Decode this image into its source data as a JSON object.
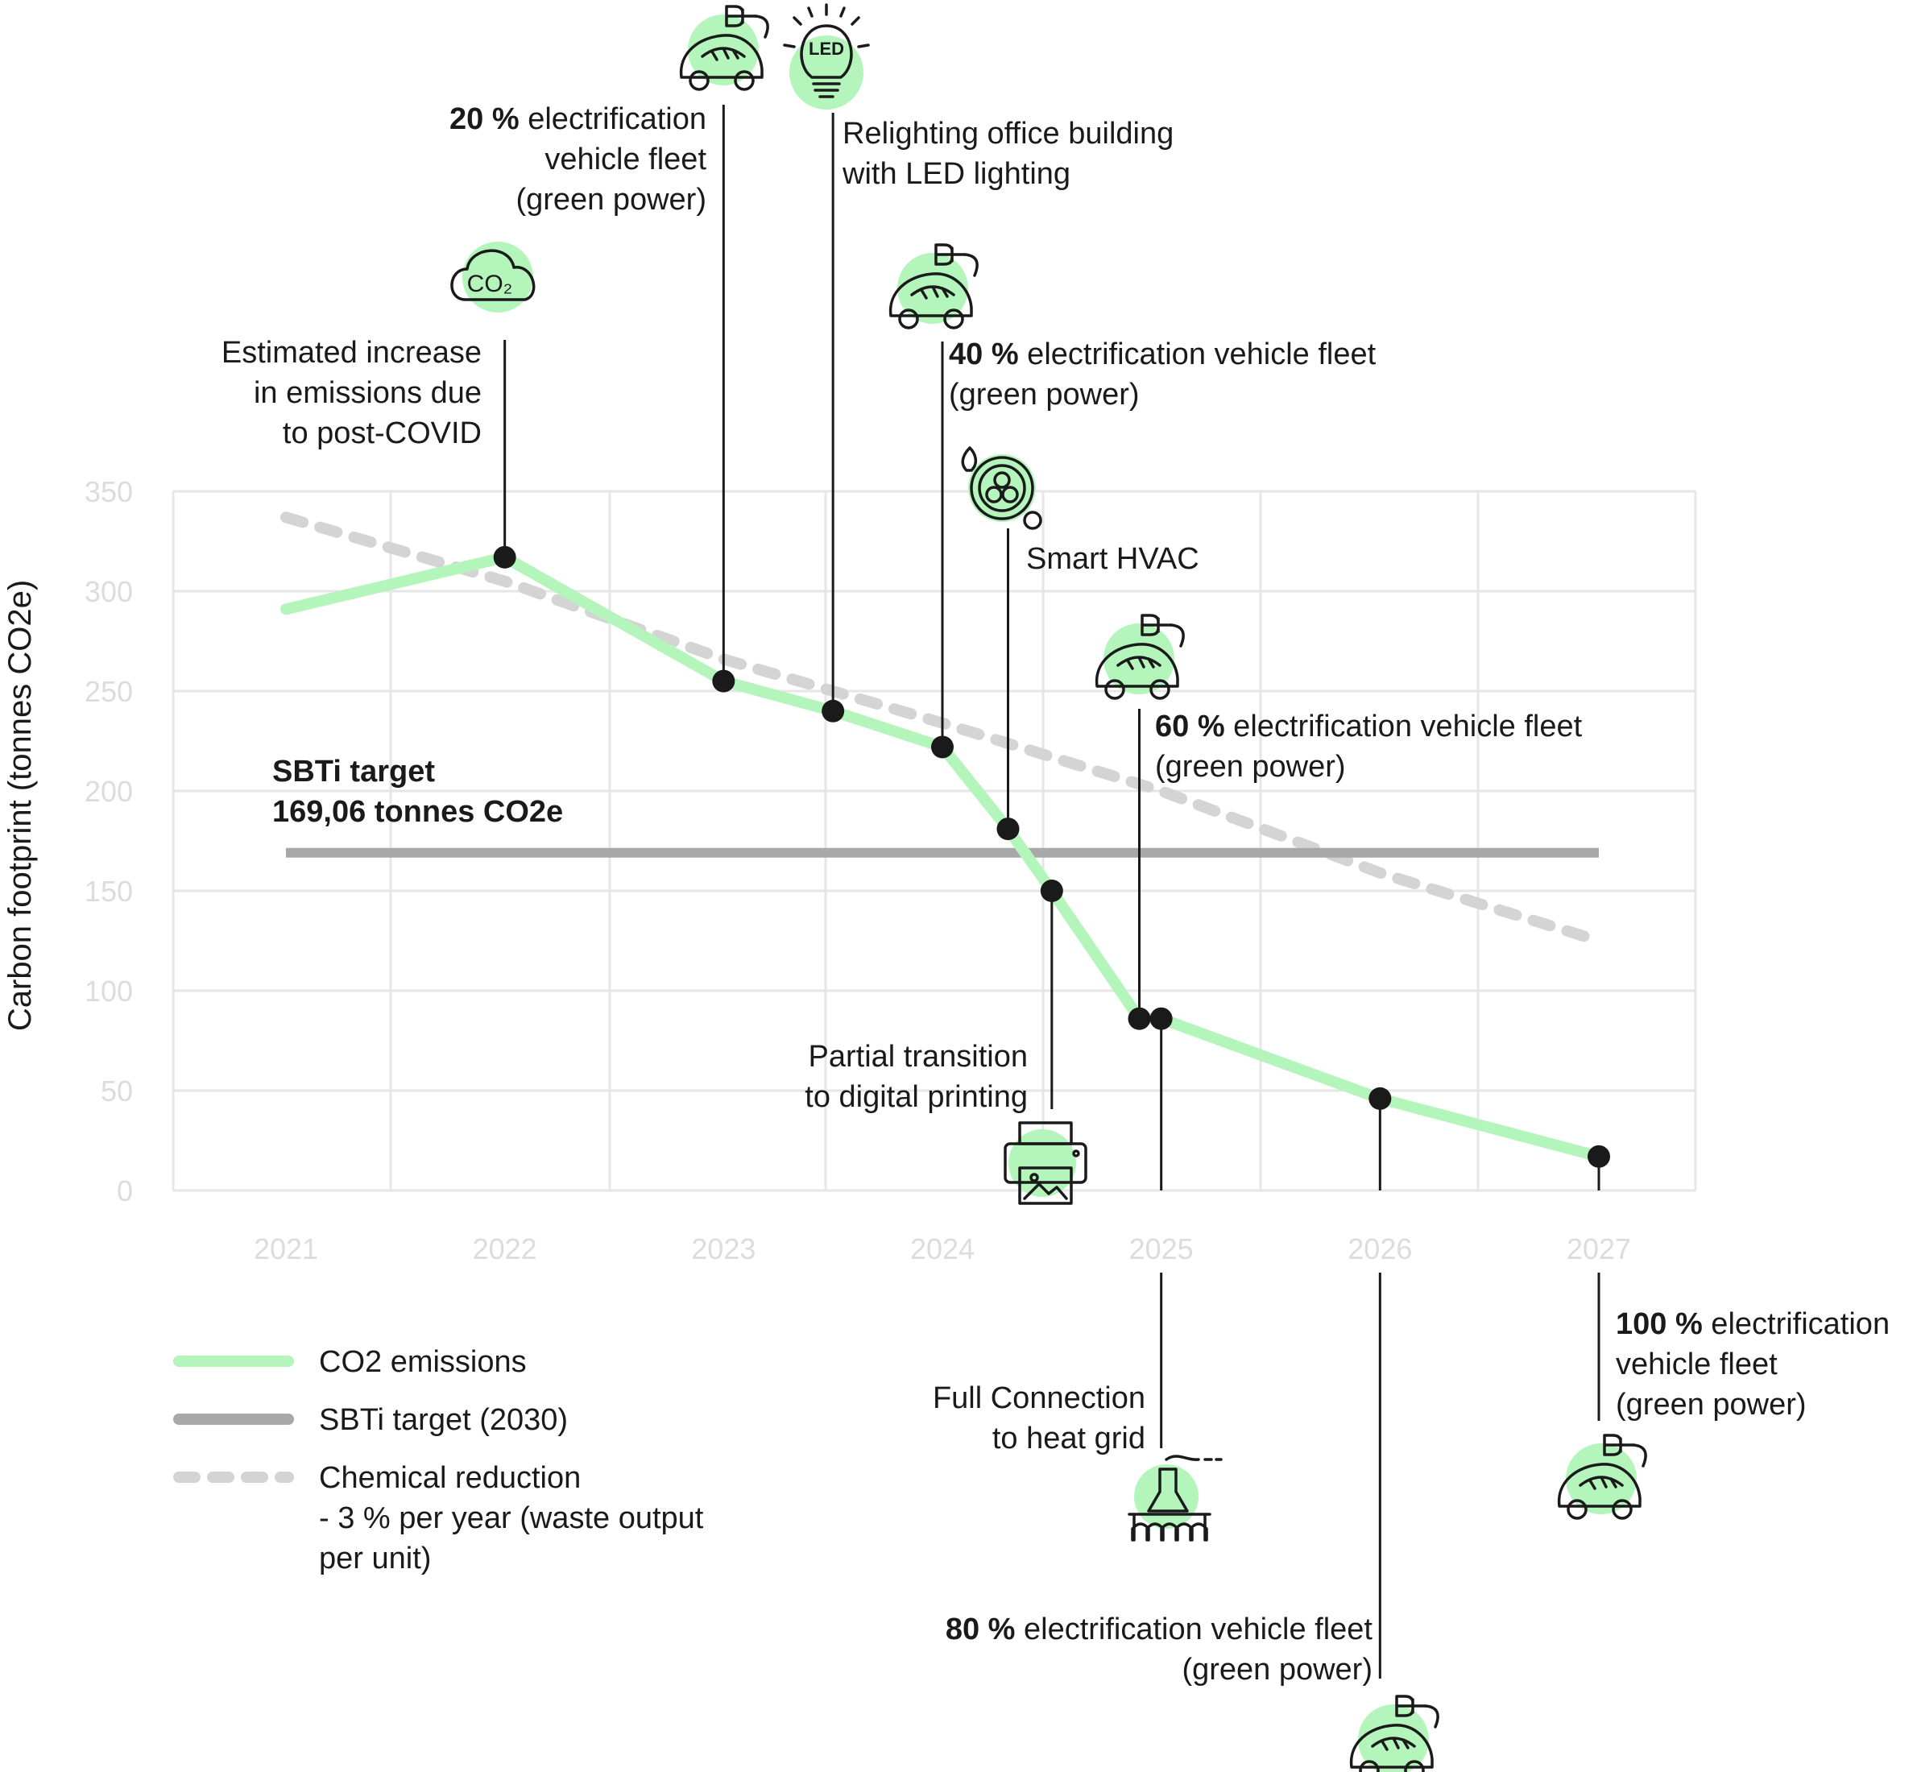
{
  "chart_data": {
    "type": "line",
    "ylabel": "Carbon footprint (tonnes CO2e)",
    "xlabel": "",
    "ylim": [
      0,
      350
    ],
    "xlim": [
      2021,
      2027
    ],
    "yticks": [
      "0",
      "50",
      "100",
      "150",
      "200",
      "250",
      "300",
      "350"
    ],
    "xticks": [
      "2021",
      "2022",
      "2023",
      "2024",
      "2025",
      "2026",
      "2027"
    ],
    "grid": true,
    "series": [
      {
        "name": "CO2 emissions",
        "color": "#b4f5bc",
        "x": [
          2021,
          2022,
          2023,
          2023.5,
          2024,
          2024.3,
          2024.5,
          2024.9,
          2025,
          2026,
          2027
        ],
        "y": [
          291,
          317,
          255,
          240,
          222,
          181,
          150,
          86,
          86,
          46,
          17
        ]
      },
      {
        "name": "SBTi target (2030)",
        "color": "#a8a8a8",
        "x": [
          2021,
          2027
        ],
        "y": [
          169.06,
          169.06
        ]
      },
      {
        "name": "Chemical reduction\n- 3 % per year (waste output\nper unit)",
        "color": "#d4d4d4",
        "style": "dotted",
        "x": [
          2021,
          2022,
          2023,
          2024,
          2025,
          2026,
          2027
        ],
        "y": [
          337,
          305,
          266,
          234,
          200,
          159,
          125
        ]
      }
    ],
    "markers": [
      {
        "x": 2022,
        "y": 317
      },
      {
        "x": 2023,
        "y": 255
      },
      {
        "x": 2023.5,
        "y": 240
      },
      {
        "x": 2024,
        "y": 222
      },
      {
        "x": 2024.3,
        "y": 181
      },
      {
        "x": 2024.5,
        "y": 150
      },
      {
        "x": 2024.9,
        "y": 86
      },
      {
        "x": 2025,
        "y": 86
      },
      {
        "x": 2026,
        "y": 46
      },
      {
        "x": 2027,
        "y": 17
      }
    ],
    "target_label": {
      "line1": "SBTi target",
      "line2": "169,06 tonnes CO2e"
    },
    "annotations": [
      {
        "icon": "co2-cloud-icon",
        "bold": "",
        "lines": [
          "Estimated increase",
          "in emissions due",
          "to post-COVID"
        ]
      },
      {
        "icon": "electric-car-icon",
        "bold": "20 %",
        "lines": [
          " electrification",
          "vehicle fleet",
          "(green power)"
        ]
      },
      {
        "icon": "led-bulb-icon",
        "bold": "",
        "lines": [
          "Relighting office building",
          "with LED lighting"
        ]
      },
      {
        "icon": "electric-car-icon",
        "bold": "40 %",
        "lines": [
          " electrification vehicle fleet",
          "(green power)"
        ]
      },
      {
        "icon": "hvac-fan-icon",
        "bold": "",
        "lines": [
          "Smart HVAC"
        ]
      },
      {
        "icon": "printer-icon",
        "bold": "",
        "lines": [
          "Partial transition",
          "to digital printing"
        ]
      },
      {
        "icon": "electric-car-icon",
        "bold": "60 %",
        "lines": [
          " electrification vehicle fleet",
          "(green power)"
        ]
      },
      {
        "icon": "heat-grid-factory-icon",
        "bold": "",
        "lines": [
          "Full Connection",
          "to heat grid"
        ]
      },
      {
        "icon": "electric-car-icon",
        "bold": "80 %",
        "lines": [
          " electrification vehicle fleet",
          "(green power)"
        ]
      },
      {
        "icon": "electric-car-icon",
        "bold": "100 %",
        "lines": [
          " electrification",
          "vehicle fleet",
          "(green power)"
        ]
      }
    ],
    "legend": {
      "placement": "bottom-left",
      "entries": [
        {
          "label_lines": [
            "CO2 emissions"
          ],
          "color": "#b4f5bc",
          "style": "solid"
        },
        {
          "label_lines": [
            "SBTi target (2030)"
          ],
          "color": "#a8a8a8",
          "style": "solid"
        },
        {
          "label_lines": [
            "Chemical reduction",
            "- 3 % per year (waste output",
            "per unit)"
          ],
          "color": "#d4d4d4",
          "style": "dotted"
        }
      ]
    }
  }
}
